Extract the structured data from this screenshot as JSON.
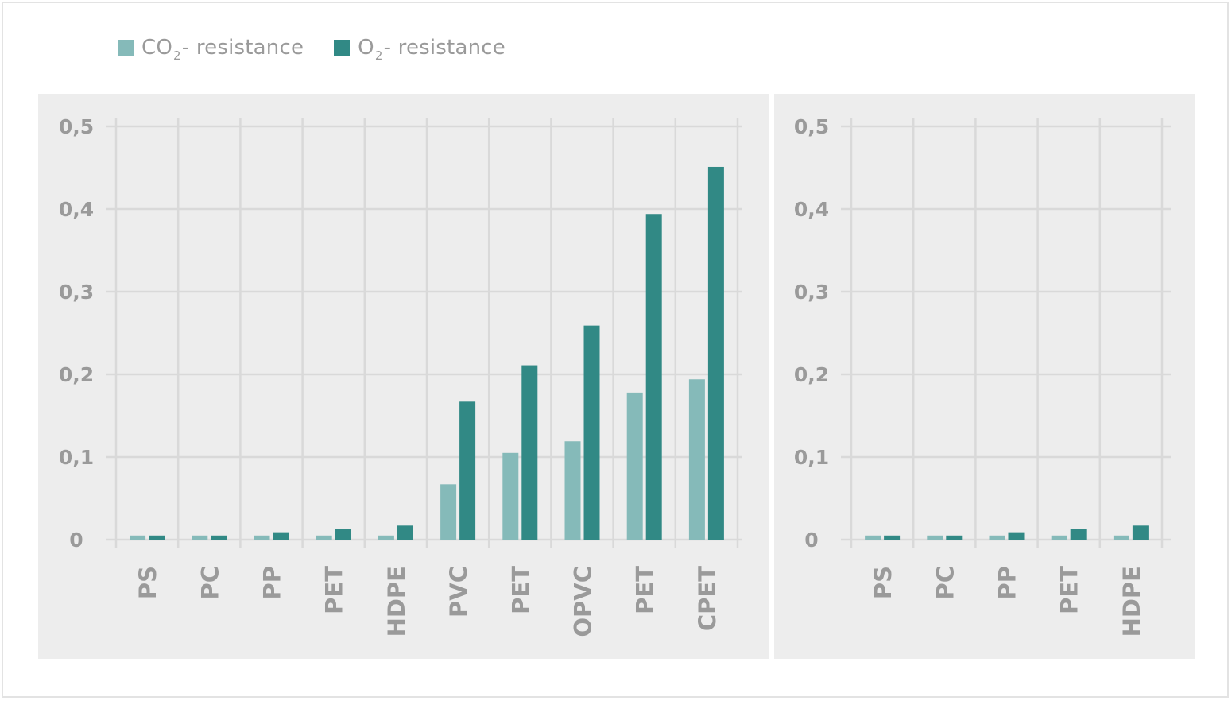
{
  "colors": {
    "co2": "#85bab9",
    "o2": "#318985",
    "panel_bg": "#ededed",
    "grid": "#d9d9d9",
    "text": "#9a9a9a"
  },
  "legend": [
    {
      "base": "CO",
      "sub": "2",
      "suffix": "- resistance",
      "color_key": "co2"
    },
    {
      "base": "O",
      "sub": "2",
      "suffix": "- resistance",
      "color_key": "o2"
    }
  ],
  "chart_data": [
    {
      "type": "bar",
      "categories": [
        "PS",
        "PC",
        "PP",
        "PET",
        "HDPE",
        "PVC",
        "PET",
        "OPVC",
        "PET",
        "CPET"
      ],
      "series": [
        {
          "name": "CO2- resistance",
          "values": [
            0.005,
            0.005,
            0.005,
            0.005,
            0.005,
            0.067,
            0.105,
            0.119,
            0.178,
            0.194
          ]
        },
        {
          "name": "O2- resistance",
          "values": [
            0.005,
            0.005,
            0.009,
            0.013,
            0.017,
            0.167,
            0.211,
            0.259,
            0.394,
            0.451
          ]
        }
      ],
      "yticks": [
        "0",
        "0,1",
        "0,2",
        "0,3",
        "0,4",
        "0,5"
      ],
      "ylim": [
        0,
        0.5
      ],
      "grid": true
    },
    {
      "type": "bar",
      "categories": [
        "PS",
        "PC",
        "PP",
        "PET",
        "HDPE"
      ],
      "series": [
        {
          "name": "CO2- resistance",
          "values": [
            0.005,
            0.005,
            0.005,
            0.005,
            0.005
          ]
        },
        {
          "name": "O2- resistance",
          "values": [
            0.005,
            0.005,
            0.009,
            0.013,
            0.017
          ]
        }
      ],
      "yticks": [
        "0",
        "0,1",
        "0,2",
        "0,3",
        "0,4",
        "0,5"
      ],
      "ylim": [
        0,
        0.5
      ],
      "grid": true
    }
  ]
}
